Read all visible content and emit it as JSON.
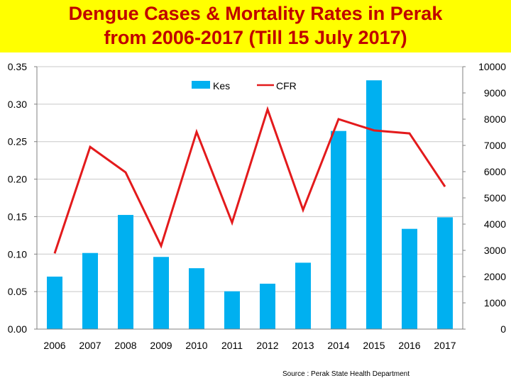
{
  "title": {
    "line1": "Dengue Cases & Mortality Rates in Perak",
    "line2": "from 2006-2017 (Till 15 July 2017)"
  },
  "colors": {
    "banner": "#ffff00",
    "title": "#c00000",
    "bars": "#00b0f0",
    "line": "#e31a1c"
  },
  "chart_data": {
    "type": "bar",
    "categories": [
      "2006",
      "2007",
      "2008",
      "2009",
      "2010",
      "2011",
      "2012",
      "2013",
      "2014",
      "2015",
      "2016",
      "2017"
    ],
    "series": [
      {
        "name": "Kes",
        "type": "bar",
        "axis": "right",
        "values": [
          2000,
          2900,
          4350,
          2750,
          2320,
          1440,
          1730,
          2530,
          7550,
          9480,
          3820,
          4260
        ]
      },
      {
        "name": "CFR",
        "type": "line",
        "axis": "left",
        "values": [
          0.101,
          0.243,
          0.209,
          0.111,
          0.263,
          0.142,
          0.293,
          0.159,
          0.28,
          0.265,
          0.261,
          0.19
        ]
      }
    ],
    "y_left": {
      "min": 0,
      "max": 0.35,
      "ticks": [
        "0.00",
        "0.05",
        "0.10",
        "0.15",
        "0.20",
        "0.25",
        "0.30",
        "0.35"
      ]
    },
    "y_right": {
      "min": 0,
      "max": 10000,
      "ticks": [
        "0",
        "1000",
        "2000",
        "3000",
        "4000",
        "5000",
        "6000",
        "7000",
        "8000",
        "9000",
        "10000"
      ]
    },
    "legend": {
      "position": "top-center",
      "bar_label": "Kes",
      "line_label": "CFR"
    },
    "grid": true
  },
  "source": "Source : Perak State Health Department"
}
